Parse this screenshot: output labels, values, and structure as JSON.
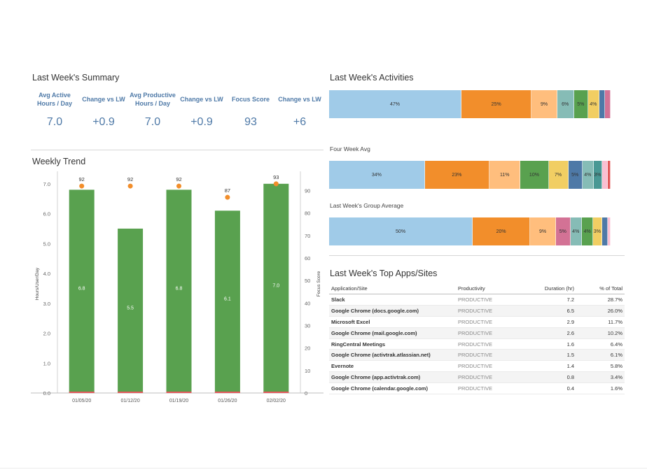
{
  "summary": {
    "title": "Last Week's Summary",
    "kpis": [
      {
        "label": "Avg Active Hours / Day",
        "value": "7.0"
      },
      {
        "label": "Change vs LW",
        "value": "+0.9"
      },
      {
        "label": "Avg Productive Hours / Day",
        "value": "7.0"
      },
      {
        "label": "Change vs LW",
        "value": "+0.9"
      },
      {
        "label": "Focus Score",
        "value": "93"
      },
      {
        "label": "Change vs LW",
        "value": "+6"
      }
    ]
  },
  "trend": {
    "title": "Weekly Trend"
  },
  "activities": {
    "title": "Last Week's Activities",
    "four_week_label": "Four Week Avg",
    "group_label": "Last Week's Group Average"
  },
  "chart_data": [
    {
      "type": "bar",
      "title": "Weekly Trend",
      "categories": [
        "01/05/20",
        "01/12/20",
        "01/19/20",
        "01/26/20",
        "02/02/20"
      ],
      "series": [
        {
          "values": [
            6.8,
            5.5,
            6.8,
            6.1,
            7.0
          ],
          "labels": [
            "6.8",
            "5.5",
            "6.8",
            "6.1",
            "7.0"
          ],
          "axis": "left",
          "color": "#59a14f"
        },
        {
          "values": [
            92,
            92,
            92,
            87,
            93
          ],
          "axis": "right",
          "marker": "dot",
          "color": "#f28e2b"
        }
      ],
      "ylabel": "Hours/User/Day",
      "y2label": "Focus Score",
      "ylim": [
        0,
        7.3
      ],
      "y2lim": [
        0,
        97
      ],
      "yticks": [
        "0.0",
        "1.0",
        "2.0",
        "3.0",
        "4.0",
        "5.0",
        "6.0",
        "7.0"
      ],
      "y2ticks": [
        "0",
        "10",
        "20",
        "30",
        "40",
        "50",
        "60",
        "70",
        "80",
        "90"
      ],
      "grid": false
    },
    {
      "type": "bar",
      "title": "Last Week's Activities",
      "orientation": "horizontal-stacked",
      "stacks": [
        {
          "name": "",
          "segments": [
            {
              "value": 47,
              "label": "47%",
              "color": "#a0cbe8"
            },
            {
              "value": 25,
              "label": "25%",
              "color": "#f28e2b"
            },
            {
              "value": 9,
              "label": "9%",
              "color": "#ffbe7d"
            },
            {
              "value": 6,
              "label": "6%",
              "color": "#86bcb6"
            },
            {
              "value": 5,
              "label": "5%",
              "color": "#59a14f"
            },
            {
              "value": 4,
              "label": "4%",
              "color": "#f1ce63"
            },
            {
              "value": 2,
              "label": "",
              "color": "#4e79a7"
            },
            {
              "value": 2,
              "label": "",
              "color": "#d37295"
            }
          ]
        },
        {
          "name": "Four Week Avg",
          "segments": [
            {
              "value": 34,
              "label": "34%",
              "color": "#a0cbe8"
            },
            {
              "value": 23,
              "label": "23%",
              "color": "#f28e2b"
            },
            {
              "value": 11,
              "label": "11%",
              "color": "#ffbe7d"
            },
            {
              "value": 10,
              "label": "10%",
              "color": "#59a14f"
            },
            {
              "value": 7,
              "label": "7%",
              "color": "#f1ce63"
            },
            {
              "value": 5,
              "label": "5%",
              "color": "#4e79a7"
            },
            {
              "value": 4,
              "label": "4%",
              "color": "#86bcb6"
            },
            {
              "value": 3,
              "label": "3%",
              "color": "#499894"
            },
            {
              "value": 2,
              "label": "",
              "color": "#fabfd2"
            },
            {
              "value": 1,
              "label": "",
              "color": "#e15759"
            }
          ]
        },
        {
          "name": "Last Week's Group Average",
          "segments": [
            {
              "value": 50,
              "label": "50%",
              "color": "#a0cbe8"
            },
            {
              "value": 20,
              "label": "20%",
              "color": "#f28e2b"
            },
            {
              "value": 9,
              "label": "9%",
              "color": "#ffbe7d"
            },
            {
              "value": 5,
              "label": "5%",
              "color": "#d37295"
            },
            {
              "value": 4,
              "label": "4%",
              "color": "#86bcb6"
            },
            {
              "value": 4,
              "label": "4%",
              "color": "#59a14f"
            },
            {
              "value": 3,
              "label": "3%",
              "color": "#f1ce63"
            },
            {
              "value": 2,
              "label": "",
              "color": "#4e79a7"
            },
            {
              "value": 1,
              "label": "",
              "color": "#fabfd2"
            }
          ]
        }
      ]
    }
  ],
  "apps": {
    "title": "Last Week's Top Apps/Sites",
    "columns": [
      "Application/Site",
      "Productivity",
      "Duration (hr)",
      "% of Total"
    ],
    "rows": [
      [
        "Slack",
        "PRODUCTIVE",
        "7.2",
        "28.7%"
      ],
      [
        "Google Chrome (docs.google.com)",
        "PRODUCTIVE",
        "6.5",
        "26.0%"
      ],
      [
        "Microsoft Excel",
        "PRODUCTIVE",
        "2.9",
        "11.7%"
      ],
      [
        "Google Chrome (mail.google.com)",
        "PRODUCTIVE",
        "2.6",
        "10.2%"
      ],
      [
        "RingCentral Meetings",
        "PRODUCTIVE",
        "1.6",
        "6.4%"
      ],
      [
        "Google Chrome (activtrak.atlassian.net)",
        "PRODUCTIVE",
        "1.5",
        "6.1%"
      ],
      [
        "Evernote",
        "PRODUCTIVE",
        "1.4",
        "5.8%"
      ],
      [
        "Google Chrome (app.activtrak.com)",
        "PRODUCTIVE",
        "0.8",
        "3.4%"
      ],
      [
        "Google Chrome (calendar.google.com)",
        "PRODUCTIVE",
        "0.4",
        "1.6%"
      ]
    ]
  }
}
